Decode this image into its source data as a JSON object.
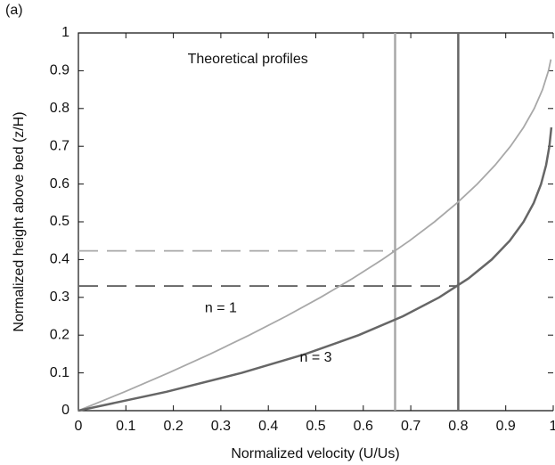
{
  "chart_data": {
    "type": "line",
    "panel_label": "(a)",
    "annotation": "Theoretical profiles",
    "xlabel": "Normalized velocity (U/Us)",
    "ylabel": "Normalized height above bed (z/H)",
    "xlim": [
      0,
      1
    ],
    "ylim": [
      0,
      1
    ],
    "xticks": [
      0,
      0.1,
      0.2,
      0.3,
      0.4,
      0.5,
      0.6,
      0.7,
      0.8,
      0.9,
      1
    ],
    "yticks": [
      0,
      0.1,
      0.2,
      0.3,
      0.4,
      0.5,
      0.6,
      0.7,
      0.8,
      0.9,
      1
    ],
    "series": [
      {
        "name": "n = 1",
        "color": "#a8a8a8",
        "x": [
          0,
          0.0975,
          0.19,
          0.2775,
          0.36,
          0.4375,
          0.51,
          0.5775,
          0.64,
          0.6975,
          0.75,
          0.7975,
          0.84,
          0.8775,
          0.91,
          0.9375,
          0.96,
          0.9775,
          0.99,
          0.9951
        ],
        "values": [
          0,
          0.05,
          0.1,
          0.15,
          0.2,
          0.25,
          0.3,
          0.35,
          0.4,
          0.45,
          0.5,
          0.55,
          0.6,
          0.65,
          0.7,
          0.75,
          0.8,
          0.85,
          0.9,
          0.93
        ]
      },
      {
        "name": "n = 3",
        "color": "#666666",
        "x": [
          0,
          0.1855,
          0.3439,
          0.478,
          0.5904,
          0.6836,
          0.7599,
          0.8215,
          0.8704,
          0.9085,
          0.9375,
          0.959,
          0.9744,
          0.985,
          0.9919,
          0.9961
        ],
        "values": [
          0,
          0.05,
          0.1,
          0.15,
          0.2,
          0.25,
          0.3,
          0.35,
          0.4,
          0.45,
          0.5,
          0.55,
          0.6,
          0.65,
          0.7,
          0.75
        ]
      }
    ],
    "reference_lines": [
      {
        "x": 0.667,
        "y": 0.423,
        "color": "#a8a8a8"
      },
      {
        "x": 0.8,
        "y": 0.33,
        "color": "#666666"
      }
    ]
  }
}
